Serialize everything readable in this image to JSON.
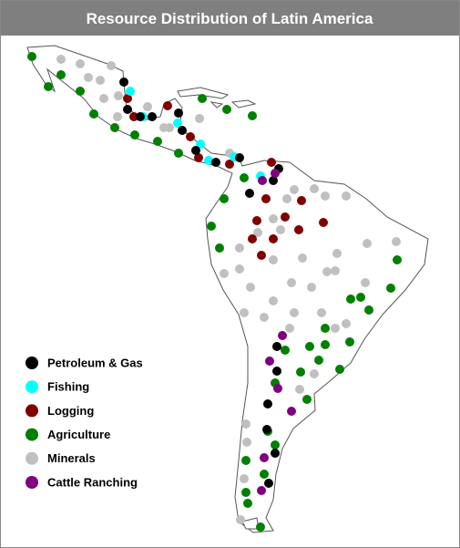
{
  "title": "Resource Distribution of Latin America",
  "legend": [
    {
      "label": "Petroleum & Gas",
      "color": "#000000"
    },
    {
      "label": "Fishing",
      "color": "#00ffff"
    },
    {
      "label": "Logging",
      "color": "#800000"
    },
    {
      "label": "Agriculture",
      "color": "#008000"
    },
    {
      "label": "Minerals",
      "color": "#c0c0c0"
    },
    {
      "label": "Cattle Ranching",
      "color": "#800080"
    }
  ]
}
